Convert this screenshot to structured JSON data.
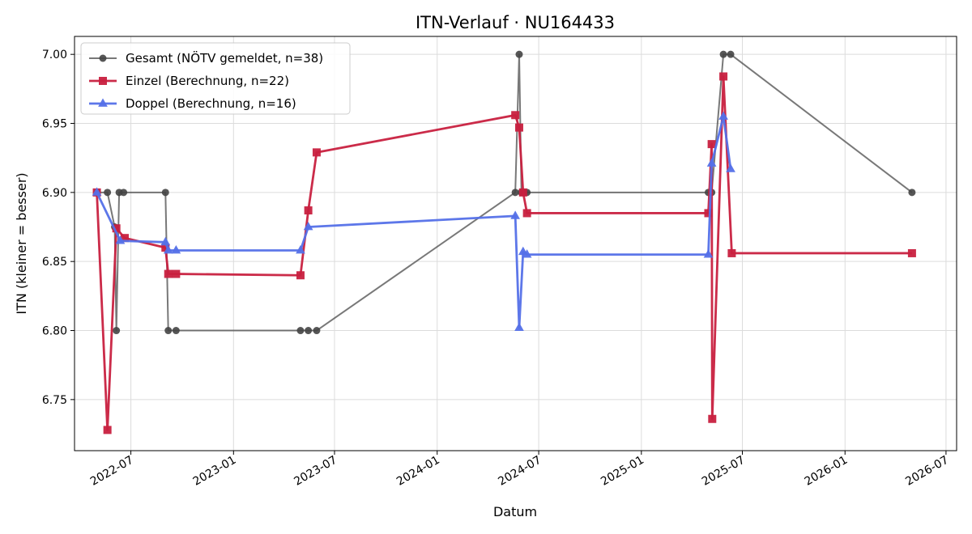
{
  "chart_data": {
    "type": "line",
    "title": "ITN-Verlauf · NU164433",
    "xlabel": "Datum",
    "ylabel": "ITN  (kleiner = besser)",
    "x_scale": "date",
    "xlim": [
      "2022-03-22",
      "2026-07-20"
    ],
    "ylim": [
      6.713,
      7.013
    ],
    "x_ticks": [
      "2022-07-01",
      "2023-01-01",
      "2023-07-01",
      "2024-01-01",
      "2024-07-01",
      "2025-01-01",
      "2025-07-01",
      "2026-01-01",
      "2026-07-01"
    ],
    "x_tick_labels": [
      "2022-07",
      "2023-01",
      "2023-07",
      "2024-01",
      "2024-07",
      "2025-01",
      "2025-07",
      "2026-01",
      "2026-07"
    ],
    "y_ticks": [
      6.75,
      6.8,
      6.85,
      6.9,
      6.95,
      7.0
    ],
    "y_tick_labels": [
      "6.75",
      "6.80",
      "6.85",
      "6.90",
      "6.95",
      "7.00"
    ],
    "grid": true,
    "legend_position": "top-left",
    "series": [
      {
        "name": "Gesamt (NÖTV gemeldet, n=38)",
        "color": "#444444",
        "marker": "circle",
        "points": [
          {
            "x": "2022-05-01",
            "y": 6.9
          },
          {
            "x": "2022-05-20",
            "y": 6.9
          },
          {
            "x": "2022-06-02",
            "y": 6.875
          },
          {
            "x": "2022-06-05",
            "y": 6.8
          },
          {
            "x": "2022-06-10",
            "y": 6.9
          },
          {
            "x": "2022-06-18",
            "y": 6.9
          },
          {
            "x": "2022-09-01",
            "y": 6.9
          },
          {
            "x": "2022-09-06",
            "y": 6.8
          },
          {
            "x": "2022-09-20",
            "y": 6.8
          },
          {
            "x": "2023-05-01",
            "y": 6.8
          },
          {
            "x": "2023-05-15",
            "y": 6.8
          },
          {
            "x": "2023-05-30",
            "y": 6.8
          },
          {
            "x": "2024-05-20",
            "y": 6.9
          },
          {
            "x": "2024-05-27",
            "y": 7.0
          },
          {
            "x": "2024-05-31",
            "y": 6.9
          },
          {
            "x": "2024-06-05",
            "y": 6.9
          },
          {
            "x": "2024-06-10",
            "y": 6.9
          },
          {
            "x": "2025-05-01",
            "y": 6.9
          },
          {
            "x": "2025-05-07",
            "y": 6.9
          },
          {
            "x": "2025-05-28",
            "y": 7.0
          },
          {
            "x": "2025-06-10",
            "y": 7.0
          },
          {
            "x": "2026-05-01",
            "y": 6.9
          }
        ]
      },
      {
        "name": "Einzel (Berechnung, n=22)",
        "color": "#c8203f",
        "marker": "square",
        "points": [
          {
            "x": "2022-05-01",
            "y": 6.9
          },
          {
            "x": "2022-05-20",
            "y": 6.728
          },
          {
            "x": "2022-06-05",
            "y": 6.874
          },
          {
            "x": "2022-06-20",
            "y": 6.867
          },
          {
            "x": "2022-09-01",
            "y": 6.86
          },
          {
            "x": "2022-09-06",
            "y": 6.841
          },
          {
            "x": "2022-09-20",
            "y": 6.841
          },
          {
            "x": "2023-05-01",
            "y": 6.84
          },
          {
            "x": "2023-05-15",
            "y": 6.887
          },
          {
            "x": "2023-05-30",
            "y": 6.929
          },
          {
            "x": "2024-05-20",
            "y": 6.956
          },
          {
            "x": "2024-05-27",
            "y": 6.947
          },
          {
            "x": "2024-06-03",
            "y": 6.9
          },
          {
            "x": "2024-06-10",
            "y": 6.885
          },
          {
            "x": "2025-05-01",
            "y": 6.885
          },
          {
            "x": "2025-05-07",
            "y": 6.935
          },
          {
            "x": "2025-05-08",
            "y": 6.736
          },
          {
            "x": "2025-05-28",
            "y": 6.984
          },
          {
            "x": "2025-06-12",
            "y": 6.856
          },
          {
            "x": "2026-05-01",
            "y": 6.856
          }
        ]
      },
      {
        "name": "Doppel (Berechnung, n=16)",
        "color": "#5470e8",
        "marker": "triangle",
        "points": [
          {
            "x": "2022-05-01",
            "y": 6.9
          },
          {
            "x": "2022-06-12",
            "y": 6.865
          },
          {
            "x": "2022-09-01",
            "y": 6.864
          },
          {
            "x": "2022-09-06",
            "y": 6.858
          },
          {
            "x": "2022-09-20",
            "y": 6.858
          },
          {
            "x": "2023-05-01",
            "y": 6.858
          },
          {
            "x": "2023-05-15",
            "y": 6.875
          },
          {
            "x": "2024-05-20",
            "y": 6.883
          },
          {
            "x": "2024-05-27",
            "y": 6.802
          },
          {
            "x": "2024-06-03",
            "y": 6.857
          },
          {
            "x": "2024-06-10",
            "y": 6.855
          },
          {
            "x": "2025-05-01",
            "y": 6.855
          },
          {
            "x": "2025-05-07",
            "y": 6.921
          },
          {
            "x": "2025-05-28",
            "y": 6.955
          },
          {
            "x": "2025-06-10",
            "y": 6.917
          }
        ]
      }
    ]
  }
}
